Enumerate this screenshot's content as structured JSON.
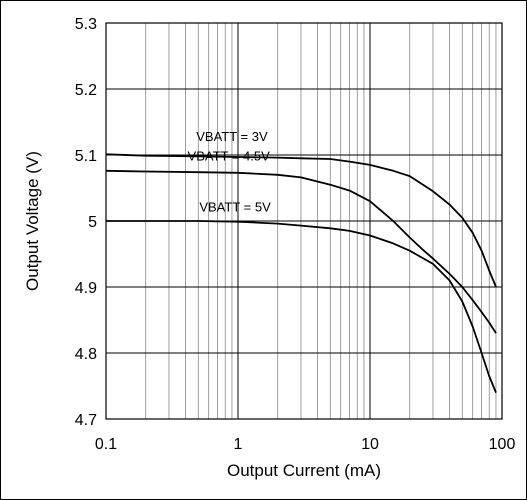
{
  "chart_data": {
    "type": "line",
    "title": "",
    "xlabel": "Output Current (mA)",
    "ylabel": "Output Voltage (V)",
    "x_scale": "log",
    "xlim": [
      0.1,
      100
    ],
    "ylim": [
      4.7,
      5.3
    ],
    "x_ticks": [
      {
        "value": 0.1,
        "label": "0.1"
      },
      {
        "value": 1,
        "label": "1"
      },
      {
        "value": 10,
        "label": "10"
      },
      {
        "value": 100,
        "label": "100"
      }
    ],
    "y_ticks": [
      {
        "value": 4.7,
        "label": "4.7"
      },
      {
        "value": 4.8,
        "label": "4.8"
      },
      {
        "value": 4.9,
        "label": "4.9"
      },
      {
        "value": 5.0,
        "label": "5"
      },
      {
        "value": 5.1,
        "label": "5.1"
      },
      {
        "value": 5.2,
        "label": "5.2"
      },
      {
        "value": 5.3,
        "label": "5.3"
      }
    ],
    "grid": true,
    "legend": "none",
    "series": [
      {
        "name": "VBATT = 3V",
        "x": [
          0.1,
          0.2,
          0.5,
          1,
          2,
          3,
          5,
          7,
          10,
          15,
          20,
          30,
          40,
          50,
          60,
          70,
          80,
          90
        ],
        "y": [
          5.101,
          5.099,
          5.098,
          5.097,
          5.096,
          5.095,
          5.094,
          5.09,
          5.085,
          5.076,
          5.068,
          5.045,
          5.025,
          5.005,
          4.982,
          4.955,
          4.925,
          4.9
        ]
      },
      {
        "name": "VBATT = 4.5V",
        "x": [
          0.1,
          0.2,
          0.5,
          1,
          2,
          3,
          5,
          7,
          10,
          15,
          20,
          25,
          30,
          40,
          50,
          60,
          70,
          80,
          90
        ],
        "y": [
          5.076,
          5.075,
          5.074,
          5.073,
          5.07,
          5.066,
          5.055,
          5.046,
          5.03,
          5.0,
          4.975,
          4.957,
          4.943,
          4.92,
          4.9,
          4.88,
          4.862,
          4.846,
          4.83
        ]
      },
      {
        "name": "VBATT = 5V",
        "x": [
          0.1,
          0.2,
          0.5,
          1,
          2,
          3,
          5,
          7,
          10,
          15,
          20,
          30,
          40,
          50,
          60,
          70,
          80,
          90
        ],
        "y": [
          5.0,
          5.0,
          5.0,
          4.999,
          4.996,
          4.993,
          4.989,
          4.985,
          4.978,
          4.966,
          4.955,
          4.935,
          4.91,
          4.878,
          4.84,
          4.8,
          4.765,
          4.74
        ]
      }
    ],
    "annotations": [
      {
        "text": "VBATT = 3V",
        "series": 0
      },
      {
        "text": "VBATT = 4.5V",
        "series": 1
      },
      {
        "text": "VBATT = 5V",
        "series": 2
      }
    ]
  }
}
